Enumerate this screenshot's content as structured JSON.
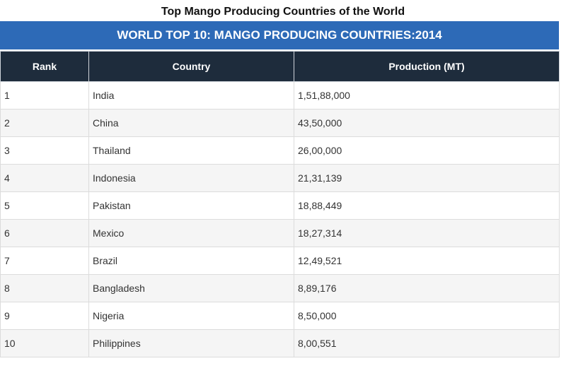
{
  "title": "Top Mango Producing Countries of the World",
  "banner": "WORLD TOP 10: MANGO PRODUCING COUNTRIES:2014",
  "table": {
    "headers": [
      "Rank",
      "Country",
      "Production (MT)"
    ],
    "rows": [
      [
        "1",
        "India",
        "1,51,88,000"
      ],
      [
        "2",
        "China",
        "43,50,000"
      ],
      [
        "3",
        "Thailand",
        "26,00,000"
      ],
      [
        "4",
        "Indonesia",
        "21,31,139"
      ],
      [
        "5",
        "Pakistan",
        "18,88,449"
      ],
      [
        "6",
        "Mexico",
        "18,27,314"
      ],
      [
        "7",
        "Brazil",
        "12,49,521"
      ],
      [
        "8",
        "Bangladesh",
        "8,89,176"
      ],
      [
        "9",
        "Nigeria",
        "8,50,000"
      ],
      [
        "10",
        "Philippines",
        "8,00,551"
      ]
    ]
  }
}
